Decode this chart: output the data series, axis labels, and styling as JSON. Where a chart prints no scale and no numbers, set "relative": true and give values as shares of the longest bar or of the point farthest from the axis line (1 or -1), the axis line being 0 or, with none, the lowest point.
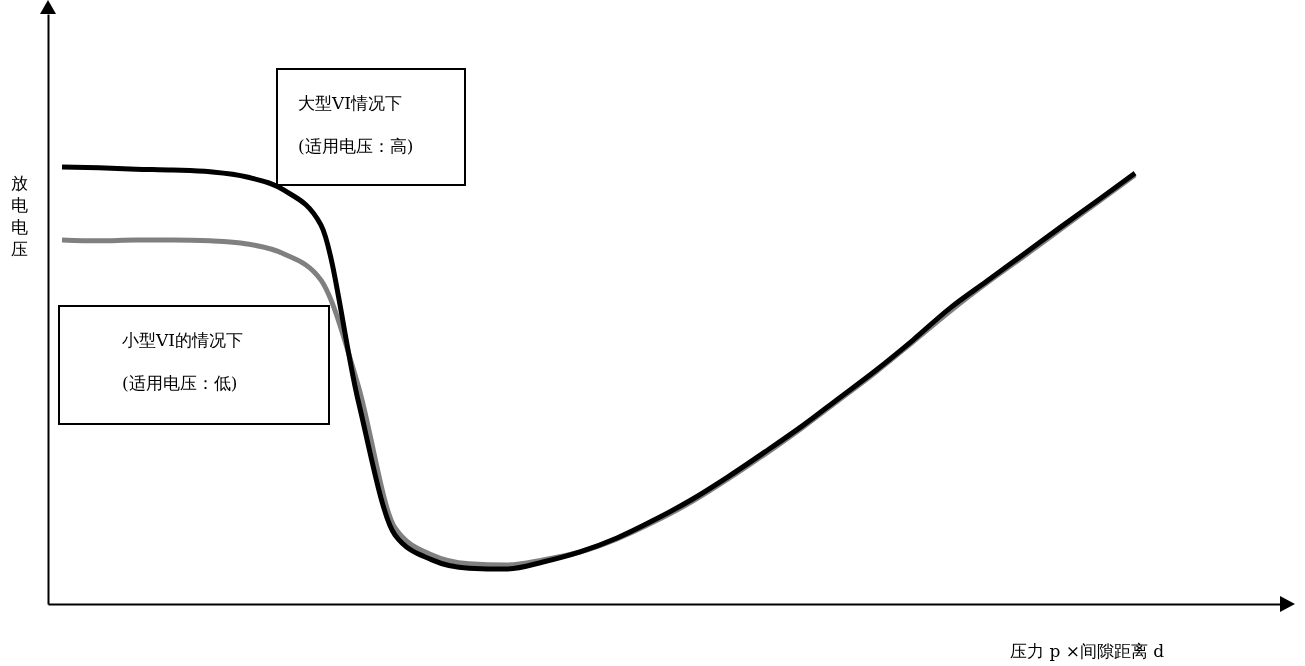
{
  "chart_data": {
    "type": "line",
    "relative": true,
    "xlabel": "压力 p ×间隙距离 d",
    "ylabel": "放电电压",
    "categories": [
      null,
      null,
      null,
      null,
      null,
      null,
      null,
      null,
      null,
      null,
      null,
      null,
      null,
      null,
      null,
      null,
      null,
      null,
      null,
      null,
      null,
      null,
      null,
      null,
      null,
      null,
      null,
      null,
      null,
      null
    ],
    "series": [
      {
        "color": "#808080",
        "values": [
          0.833,
          0.831,
          0.833,
          0.833,
          0.831,
          0.824,
          0.801,
          0.741,
          0.501,
          0.174,
          0.112,
          0.092,
          0.089,
          0.101,
          0.119,
          0.149,
          0.188,
          0.233,
          0.286,
          0.343,
          0.403,
          0.467,
          0.531,
          0.6,
          0.67,
          0.735,
          0.796,
          0.858,
          0.92,
          0.982
        ]
      },
      {
        "color": "#000000",
        "values": [
          1.0,
          0.998,
          0.995,
          0.993,
          0.989,
          0.977,
          0.947,
          0.867,
          0.467,
          0.158,
          0.101,
          0.082,
          0.08,
          0.096,
          0.119,
          0.151,
          0.192,
          0.238,
          0.291,
          0.348,
          0.407,
          0.471,
          0.535,
          0.604,
          0.677,
          0.739,
          0.801,
          0.863,
          0.924,
          0.986
        ]
      }
    ],
    "annotations": [
      "大型VI情况下\n(适用电压：高)",
      "小型VI的情况下\n(适用电压：低)"
    ],
    "grid": false,
    "marker": "none",
    "line_style": "solid"
  }
}
